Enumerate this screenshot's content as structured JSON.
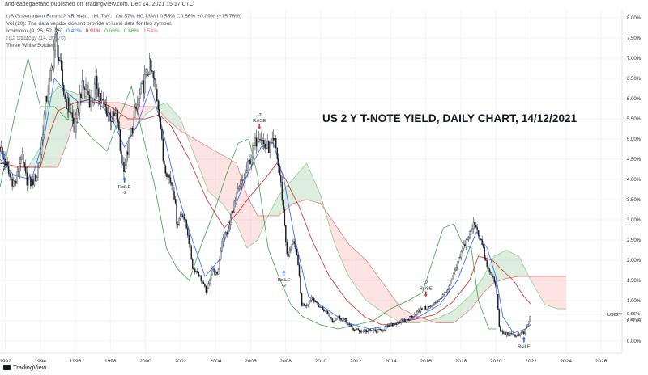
{
  "publisher_line": "andreadegaetano published on TradingView.com, Dec 14, 2021 15:17 UTC",
  "legend": {
    "symbol_label": "US Government Bonds 2 YR Yield, 1M, TVC",
    "symbol_values": "O0.57% H0.73% L0.55% C0.66% +0.09% (+15.76%)",
    "volume_line": "Vol (20): The data vendor doesn't provide volume data for this symbol.",
    "ichimoku_label": "Ichimoku (9, 26, 52, 26)",
    "ichimoku_values": [
      "0.42%",
      "0.91%",
      "0.66%",
      "0.66%",
      "1.54%"
    ],
    "ichimoku_value_colors": [
      "#2962ff",
      "#b71c1c",
      "#43a047",
      "#43a047",
      "#e57373"
    ],
    "rsi_line": "RSI Strategy (14, 30, 70)",
    "pattern_line": "Three White Soldiers"
  },
  "headline": "US 2 Y T-NOTE YIELD, DAILY CHART, 14/12/2021",
  "footer": {
    "brand": "TradingView"
  },
  "chart_data": {
    "type": "candlestick",
    "x_ticks": [
      "1992",
      "1994",
      "1996",
      "1998",
      "2000",
      "2002",
      "2004",
      "2006",
      "2008",
      "2010",
      "2012",
      "2014",
      "2016",
      "2018",
      "2020",
      "2022",
      "2024",
      "2026"
    ],
    "y_ticks": [
      "0.00%",
      "0.50%",
      "1.00%",
      "1.50%",
      "2.00%",
      "2.50%",
      "3.00%",
      "3.50%",
      "4.00%",
      "4.50%",
      "5.00%",
      "5.50%",
      "6.00%",
      "6.50%",
      "7.00%",
      "7.50%",
      "8.00%"
    ],
    "x_range": [
      1991.7,
      2027.2
    ],
    "y_range": [
      -0.3,
      8.2
    ],
    "grid": true,
    "price_label": {
      "symbol": "US02Y",
      "value": "0.66%",
      "countdown": "17d 7h",
      "y": 0.66
    },
    "price": {
      "x": [
        1991.7,
        1992.0,
        1992.3,
        1992.6,
        1992.9,
        1993.2,
        1993.5,
        1993.8,
        1994.0,
        1994.3,
        1994.6,
        1994.9,
        1995.1,
        1995.4,
        1995.7,
        1996.0,
        1996.3,
        1996.6,
        1996.9,
        1997.2,
        1997.5,
        1997.8,
        1998.1,
        1998.4,
        1998.6,
        1998.8,
        1999.1,
        1999.4,
        1999.7,
        2000.0,
        2000.2,
        2000.5,
        2000.8,
        2001.0,
        2001.3,
        2001.6,
        2001.8,
        2002.1,
        2002.4,
        2002.7,
        2003.0,
        2003.3,
        2003.5,
        2003.8,
        2004.1,
        2004.4,
        2004.7,
        2005.0,
        2005.3,
        2005.6,
        2005.9,
        2006.2,
        2006.5,
        2006.8,
        2007.1,
        2007.4,
        2007.7,
        2007.9,
        2008.1,
        2008.4,
        2008.7,
        2008.9,
        2009.2,
        2009.5,
        2009.8,
        2010.1,
        2010.4,
        2010.7,
        2011.0,
        2011.4,
        2011.8,
        2012.3,
        2012.8,
        2013.3,
        2013.8,
        2014.3,
        2014.8,
        2015.3,
        2015.8,
        2016.3,
        2016.8,
        2017.3,
        2017.8,
        2018.2,
        2018.5,
        2018.8,
        2018.9,
        2019.2,
        2019.5,
        2019.8,
        2020.0,
        2020.2,
        2020.4,
        2020.8,
        2021.2,
        2021.6,
        2021.8,
        2022.0
      ],
      "y": [
        4.8,
        4.4,
        4.0,
        3.9,
        4.6,
        4.0,
        3.9,
        4.1,
        4.6,
        5.9,
        6.6,
        7.6,
        6.8,
        6.0,
        5.7,
        5.2,
        6.2,
        6.3,
        5.9,
        6.4,
        5.9,
        5.7,
        5.5,
        5.6,
        4.5,
        4.3,
        5.0,
        5.6,
        6.1,
        6.5,
        6.8,
        6.4,
        5.7,
        4.5,
        4.1,
        3.8,
        2.9,
        3.2,
        2.7,
        1.8,
        1.7,
        1.4,
        1.2,
        1.8,
        1.6,
        2.6,
        2.7,
        3.3,
        3.7,
        4.0,
        4.4,
        4.8,
        5.2,
        4.8,
        4.8,
        4.9,
        4.0,
        3.1,
        2.0,
        2.5,
        2.0,
        0.9,
        0.9,
        1.1,
        0.9,
        0.8,
        0.7,
        0.5,
        0.6,
        0.5,
        0.3,
        0.25,
        0.25,
        0.25,
        0.35,
        0.45,
        0.5,
        0.65,
        0.8,
        0.85,
        1.05,
        1.3,
        1.9,
        2.4,
        2.65,
        2.95,
        2.8,
        2.4,
        1.8,
        1.6,
        1.4,
        0.3,
        0.2,
        0.15,
        0.15,
        0.2,
        0.4,
        0.66
      ]
    },
    "tenkan": {
      "x": [
        1991.7,
        1992.5,
        1993.5,
        1994.2,
        1994.8,
        1995.4,
        1996.2,
        1997.0,
        1998.0,
        1998.8,
        1999.5,
        2000.3,
        2001.0,
        2001.8,
        2002.6,
        2003.4,
        2004.2,
        2005.0,
        2005.8,
        2006.6,
        2007.3,
        2007.9,
        2008.5,
        2009.3,
        2010.3,
        2011.5,
        2012.8,
        2014.2,
        2015.6,
        2016.8,
        2017.8,
        2018.5,
        2018.9,
        2019.5,
        2020.0,
        2020.4,
        2021.0,
        2021.7,
        2022.0
      ],
      "y": [
        4.5,
        4.1,
        4.0,
        5.0,
        6.5,
        6.2,
        5.9,
        6.0,
        5.6,
        4.8,
        5.3,
        6.3,
        5.2,
        3.7,
        2.6,
        1.6,
        2.0,
        3.2,
        4.1,
        4.8,
        4.9,
        4.0,
        2.6,
        1.1,
        0.8,
        0.45,
        0.3,
        0.4,
        0.6,
        0.9,
        1.5,
        2.3,
        2.7,
        2.3,
        1.6,
        0.6,
        0.2,
        0.3,
        0.42
      ]
    },
    "kijun": {
      "x": [
        1991.7,
        1993.0,
        1994.0,
        1994.5,
        1995.0,
        1996.0,
        1997.0,
        1998.0,
        1999.0,
        2000.0,
        2000.8,
        2001.5,
        2002.5,
        2003.5,
        2004.5,
        2005.3,
        2006.0,
        2006.8,
        2007.5,
        2008.0,
        2008.8,
        2009.5,
        2010.5,
        2011.5,
        2012.5,
        2013.5,
        2014.5,
        2015.5,
        2016.5,
        2017.5,
        2018.5,
        2019.0,
        2019.8,
        2020.5,
        2021.0,
        2021.6,
        2022.0
      ],
      "y": [
        4.4,
        4.3,
        4.3,
        5.1,
        5.7,
        5.9,
        6.0,
        5.8,
        5.5,
        5.5,
        5.6,
        5.3,
        4.5,
        3.5,
        2.8,
        3.2,
        3.6,
        4.0,
        4.4,
        4.0,
        3.3,
        2.5,
        1.6,
        1.0,
        0.6,
        0.4,
        0.45,
        0.55,
        0.65,
        0.95,
        1.5,
        2.1,
        2.0,
        1.7,
        1.5,
        1.1,
        0.91
      ]
    },
    "chikou": {
      "x": [
        1991.7,
        1992.5,
        1993.3,
        1994.0,
        1994.8,
        1995.5,
        1996.2,
        1997.0,
        1997.8,
        1998.5,
        1999.2,
        1999.9,
        2000.5,
        2001.2,
        2001.8,
        2002.5,
        2003.2,
        2004.0,
        2004.6,
        2005.3,
        2005.9,
        2006.4,
        2007.0,
        2007.6,
        2008.3,
        2009.0,
        2010.0,
        2011.0,
        2012.0,
        2013.0,
        2014.0,
        2015.0,
        2015.8,
        2016.4,
        2017.0,
        2017.6,
        2018.1,
        2018.6,
        2019.0,
        2019.6,
        2020.0
      ],
      "y": [
        3.8,
        5.5,
        7.0,
        5.8,
        5.8,
        5.5,
        5.4,
        5.0,
        4.7,
        5.5,
        6.3,
        5.0,
        3.9,
        2.3,
        1.8,
        1.5,
        2.4,
        3.3,
        4.1,
        4.9,
        5.0,
        4.1,
        2.3,
        1.6,
        0.9,
        0.6,
        0.4,
        0.3,
        0.4,
        0.5,
        0.8,
        1.0,
        1.2,
        2.0,
        2.8,
        2.9,
        2.4,
        2.3,
        1.0,
        0.3,
        0.3
      ]
    },
    "cloud": {
      "x": [
        1992.5,
        1993.3,
        1994.0,
        1994.5,
        1995.0,
        1995.6,
        1996.2,
        1997.0,
        1997.8,
        1998.5,
        1999.3,
        2000.0,
        2000.6,
        2001.2,
        2002.0,
        2002.8,
        2003.6,
        2004.4,
        2005.2,
        2005.8,
        2006.4,
        2007.0,
        2007.6,
        2008.4,
        2009.2,
        2010.0,
        2010.8,
        2011.6,
        2012.6,
        2013.6,
        2014.6,
        2015.6,
        2016.6,
        2017.6,
        2018.6,
        2019.3,
        2019.9,
        2020.6,
        2021.3,
        2022.0,
        2022.8,
        2023.5,
        2024.0
      ],
      "span_a": [
        4.3,
        4.3,
        4.8,
        6.0,
        6.3,
        6.2,
        6.1,
        6.0,
        5.7,
        5.3,
        5.2,
        5.6,
        5.8,
        5.9,
        5.5,
        4.6,
        3.7,
        3.4,
        2.9,
        2.3,
        2.5,
        3.1,
        3.6,
        4.0,
        4.4,
        3.6,
        2.4,
        1.6,
        1.0,
        0.7,
        0.45,
        0.45,
        0.55,
        0.75,
        1.15,
        1.6,
        2.1,
        2.25,
        2.1,
        1.5,
        0.9,
        0.8,
        0.8
      ],
      "span_b": [
        4.3,
        4.3,
        4.3,
        4.3,
        4.3,
        5.0,
        5.9,
        5.9,
        5.9,
        5.9,
        5.8,
        5.8,
        5.8,
        5.5,
        5.2,
        5.0,
        4.8,
        4.6,
        4.4,
        3.6,
        3.1,
        3.1,
        3.1,
        3.4,
        3.5,
        3.4,
        2.9,
        2.4,
        2.0,
        1.4,
        0.8,
        0.6,
        0.45,
        0.45,
        0.8,
        1.2,
        1.45,
        1.55,
        1.6,
        1.6,
        1.6,
        1.6,
        1.6
      ]
    },
    "signals": [
      {
        "label": "RsiLE",
        "qty": "-2",
        "x": 1991.9,
        "y": 4.7,
        "direction": "up"
      },
      {
        "label": "RsiLE",
        "qty": "-2",
        "x": 1998.8,
        "y": 4.1,
        "direction": "up"
      },
      {
        "label": "RsiSE",
        "qty": "-2",
        "x": 2006.5,
        "y": 5.2,
        "direction": "down"
      },
      {
        "label": "RsiLE",
        "qty": "-2",
        "x": 2007.9,
        "y": 1.8,
        "direction": "up"
      },
      {
        "label": "RsiSE",
        "qty": "-2",
        "x": 2016.0,
        "y": 1.05,
        "direction": "down"
      },
      {
        "label": "RsiLE",
        "qty": "",
        "x": 2021.6,
        "y": 0.15,
        "direction": "up"
      }
    ]
  }
}
